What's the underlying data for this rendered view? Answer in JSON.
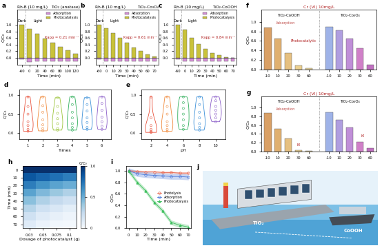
{
  "chart_data": [
    {
      "panel": "a",
      "type": "bar",
      "title": "Rh-B (10 mg/L)",
      "subtitle": "TiO₂ (anatase)",
      "x_label": "Time (min)",
      "y_label": "C/C₀",
      "categories": [
        "-60",
        "0",
        "20",
        "40",
        "60",
        "80",
        "100",
        "120"
      ],
      "series": [
        {
          "name": "Adsorption",
          "color": "#d58fd6",
          "values": [
            -0.05,
            -0.12,
            -0.1,
            -0.1,
            -0.1,
            -0.1,
            -0.1,
            -0.1
          ]
        },
        {
          "name": "Photocatalysis",
          "color": "#c9c23a",
          "values": [
            1.0,
            0.88,
            0.72,
            0.58,
            0.45,
            0.33,
            0.22,
            0.12
          ]
        }
      ],
      "annotations": [
        "Dark",
        "Light",
        "Kapp = 0.21 min⁻¹"
      ],
      "ylim": [
        -0.2,
        1.45
      ],
      "yticks": [
        0.0,
        0.2,
        0.4,
        0.6,
        0.8,
        1.0
      ],
      "legend": "upper right"
    },
    {
      "panel": "b",
      "type": "bar",
      "title": "Rh-B (10 mg/L)",
      "subtitle": "TiO₂-Co₃O₄",
      "x_label": "Time (min)",
      "y_label": "C/C₀",
      "categories": [
        "-60",
        "0",
        "10",
        "20",
        "30",
        "40",
        "50",
        "60",
        "70"
      ],
      "series": [
        {
          "name": "Adsorption",
          "color": "#d58fd6",
          "values": [
            -0.05,
            -0.1,
            -0.1,
            -0.1,
            -0.1,
            -0.1,
            -0.1,
            -0.1,
            -0.1
          ]
        },
        {
          "name": "Photocatalysis",
          "color": "#c9c23a",
          "values": [
            1.0,
            0.9,
            0.75,
            0.6,
            0.45,
            0.32,
            0.2,
            0.1,
            0.05
          ]
        }
      ],
      "annotations": [
        "Dark",
        "Light",
        "Kapp = 0.61 min⁻¹"
      ],
      "ylim": [
        -0.2,
        1.45
      ],
      "yticks": [
        0.0,
        0.2,
        0.4,
        0.6,
        0.8,
        1.0
      ],
      "legend": "upper right"
    },
    {
      "panel": "c",
      "type": "bar",
      "title": "Rh-B (10 mg/L)",
      "subtitle": "TiO₂-CoOOH",
      "x_label": "Time (min)",
      "y_label": "C/C₀",
      "categories": [
        "-60",
        "0",
        "10",
        "20",
        "30",
        "40",
        "50",
        "60",
        "70"
      ],
      "series": [
        {
          "name": "Adsorption",
          "color": "#d58fd6",
          "values": [
            -0.05,
            -0.1,
            -0.1,
            -0.1,
            -0.1,
            -0.1,
            -0.1,
            -0.1,
            -0.1
          ]
        },
        {
          "name": "Photocatalysis",
          "color": "#c9c23a",
          "values": [
            1.0,
            0.85,
            0.6,
            0.42,
            0.28,
            0.15,
            0.08,
            0.03,
            0.01
          ]
        }
      ],
      "annotations": [
        "Dark",
        "Light",
        "Kapp = 0.84 min⁻¹"
      ],
      "ylim": [
        -0.2,
        1.45
      ],
      "yticks": [
        0.0,
        0.2,
        0.4,
        0.6,
        0.8,
        1.0
      ],
      "legend": "upper right"
    },
    {
      "panel": "d",
      "type": "violin",
      "x_label": "Times",
      "y_label": "C/C₀",
      "categories": [
        "1",
        "2",
        "3",
        "4",
        "5",
        "6"
      ],
      "colors": [
        "#e8503a",
        "#f08a3c",
        "#9cc43a",
        "#2fae5a",
        "#3a8fd8",
        "#8a5cc8"
      ],
      "values": [
        [
          0.95,
          0.7,
          0.5,
          0.3,
          0.2,
          0.1,
          0.05
        ],
        [
          0.95,
          0.72,
          0.55,
          0.35,
          0.22,
          0.12,
          0.06
        ],
        [
          0.93,
          0.7,
          0.52,
          0.38,
          0.25,
          0.12,
          0.08
        ],
        [
          0.95,
          0.75,
          0.55,
          0.4,
          0.25,
          0.15,
          0.08
        ],
        [
          0.93,
          0.75,
          0.58,
          0.4,
          0.28,
          0.15,
          0.1
        ],
        [
          0.95,
          0.78,
          0.6,
          0.42,
          0.3,
          0.18,
          0.1
        ]
      ],
      "ylim": [
        -0.15,
        1.15
      ],
      "yticks": [
        0.0,
        0.5,
        1.0
      ]
    },
    {
      "panel": "e",
      "type": "violin",
      "x_label": "pH",
      "y_label": "C/C₀",
      "categories": [
        "2",
        "4",
        "6",
        "8",
        "10"
      ],
      "colors": [
        "#e8503a",
        "#f08a3c",
        "#2fae5a",
        "#3a8fd8",
        "#8a5cc8"
      ],
      "values": [
        [
          0.95,
          0.4,
          0.2,
          0.1,
          0.05,
          0.03,
          0.02
        ],
        [
          0.95,
          0.7,
          0.5,
          0.3,
          0.2,
          0.1,
          0.05
        ],
        [
          0.95,
          0.8,
          0.65,
          0.5,
          0.35,
          0.2,
          0.1
        ],
        [
          0.95,
          0.75,
          0.55,
          0.4,
          0.25,
          0.15,
          0.08
        ],
        [
          0.95,
          0.85,
          0.7,
          0.6,
          0.5,
          0.4,
          0.3
        ]
      ],
      "ylim": [
        -0.15,
        1.15
      ],
      "yticks": [
        0.0,
        0.5,
        1.0
      ]
    },
    {
      "panel": "f",
      "type": "bar",
      "title": "Cr (VI) 10mg/L",
      "groups": [
        "TiO₂-CoOOH",
        "TiO₂-Co₃O₄"
      ],
      "y_label": "C/C₀",
      "categories": [
        "-10",
        "10",
        "20",
        "30",
        "60",
        null,
        "-10",
        "10",
        "20",
        "30",
        "60"
      ],
      "values": [
        0.88,
        0.65,
        0.35,
        0.08,
        0.02,
        null,
        0.9,
        0.82,
        0.65,
        0.45,
        0.1
      ],
      "colors": [
        "#d9a066",
        "#e0b070",
        "#e6c080",
        "#ecd090",
        "#f0dca0",
        null,
        "#9fb3e8",
        "#b09ee0",
        "#c08fd8",
        "#d080c8",
        "#c070c0"
      ],
      "annotations": [
        "Adsorption",
        "Photocatalytic"
      ],
      "ylim": [
        0,
        1.25
      ],
      "yticks": [
        0.0,
        0.2,
        0.4,
        0.6,
        0.8,
        1.0
      ]
    },
    {
      "panel": "g",
      "type": "bar",
      "title": "Cr (VI) 10mg/L",
      "groups": [
        "TiO₂-CoOOH",
        "TiO₂-Co₃O₄"
      ],
      "y_label": "C/C₀",
      "categories": [
        "-10",
        "10",
        "20",
        "30",
        "60",
        null,
        "-10",
        "10",
        "20",
        "30",
        "60"
      ],
      "values": [
        0.88,
        0.52,
        0.3,
        0.02,
        0.01,
        null,
        0.9,
        0.72,
        0.55,
        0.22,
        0.08
      ],
      "colors": [
        "#d9a066",
        "#e0b070",
        "#e6c080",
        "#ecd090",
        "#f0dca0",
        null,
        "#9fb3e8",
        "#b09ee0",
        "#c08fd8",
        "#d080c8",
        "#c070c0"
      ],
      "annotations": [
        "Adsorption",
        "KI",
        "KI"
      ],
      "ylim": [
        0,
        1.25
      ],
      "yticks": [
        0.0,
        0.2,
        0.4,
        0.6,
        0.8,
        1.0
      ]
    },
    {
      "panel": "h",
      "type": "heatmap",
      "x_label": "Dosage of photocatalyst (g)",
      "y_label": "Time (min)",
      "x_categories": [
        "0.03",
        "0.05",
        "0.075",
        "0.1"
      ],
      "y_categories": [
        "0",
        "10",
        "20",
        "30",
        "40",
        "50",
        "60",
        "70"
      ],
      "cells": [
        [
          1.0,
          1.0,
          1.0,
          1.0
        ],
        [
          0.85,
          0.8,
          0.75,
          0.7
        ],
        [
          0.7,
          0.62,
          0.55,
          0.5
        ],
        [
          0.55,
          0.45,
          0.38,
          0.32
        ],
        [
          0.42,
          0.32,
          0.25,
          0.2
        ],
        [
          0.3,
          0.2,
          0.15,
          0.1
        ],
        [
          0.2,
          0.12,
          0.08,
          0.05
        ],
        [
          0.12,
          0.06,
          0.03,
          0.02
        ]
      ],
      "colorbar": {
        "label": "C/C₀",
        "range": [
          0,
          1.0
        ],
        "ticks": [
          0,
          0.5,
          1.0
        ]
      }
    },
    {
      "panel": "i",
      "type": "line",
      "x_label": "Time (min)",
      "y_label": "C/C₀",
      "x": [
        0,
        10,
        20,
        30,
        40,
        50,
        60,
        70
      ],
      "series": [
        {
          "name": "Photolysis",
          "color": "#e8674f",
          "marker": "circle",
          "values": [
            1.0,
            0.99,
            0.98,
            0.98,
            0.97,
            0.97,
            0.96,
            0.96
          ],
          "error": [
            0.02,
            0.02,
            0.02,
            0.02,
            0.02,
            0.02,
            0.02,
            0.02
          ]
        },
        {
          "name": "Adsorption",
          "color": "#4a78d8",
          "marker": "circle",
          "values": [
            1.0,
            0.95,
            0.93,
            0.92,
            0.91,
            0.9,
            0.9,
            0.89
          ],
          "error": [
            0.05,
            0.05,
            0.05,
            0.05,
            0.05,
            0.05,
            0.05,
            0.05
          ]
        },
        {
          "name": "Photocatalysis",
          "color": "#3cbf5c",
          "marker": "triangle",
          "values": [
            1.0,
            0.8,
            0.65,
            0.45,
            0.3,
            0.1,
            0.05,
            0.02
          ],
          "error": [
            0.04,
            0.04,
            0.04,
            0.04,
            0.04,
            0.04,
            0.04,
            0.04
          ]
        }
      ],
      "xlim": [
        -3,
        73
      ],
      "xticks": [
        0,
        10,
        20,
        30,
        40,
        50,
        60,
        70
      ],
      "ylim": [
        0,
        1.08
      ],
      "yticks": [
        0.0,
        0.2,
        0.4,
        0.6,
        0.8,
        1.0
      ],
      "legend": "center right"
    }
  ],
  "illustration": {
    "panel": "j",
    "labels": [
      "TiO₂",
      "CoOOH"
    ]
  }
}
